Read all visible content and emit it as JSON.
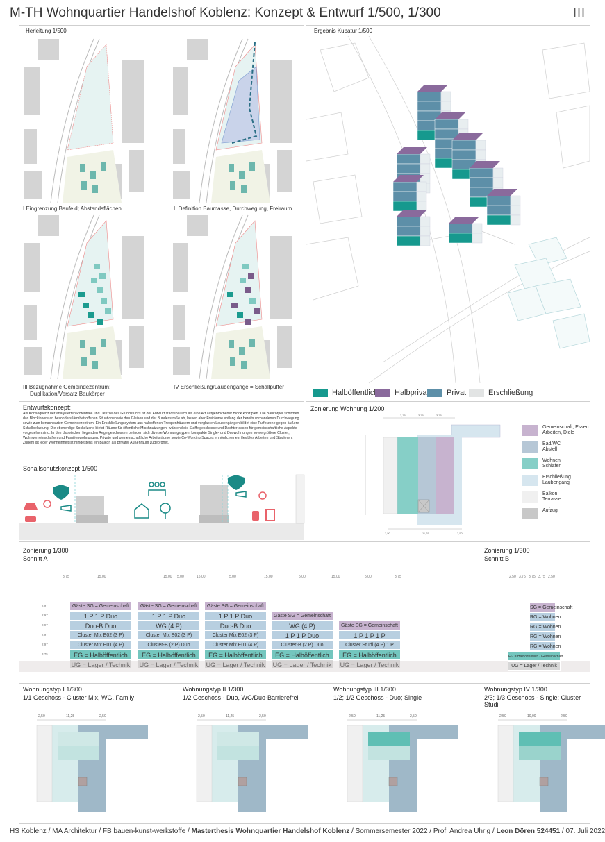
{
  "header": {
    "title": "M-TH Wohnquartier Handelshof Koblenz: Konzept & Entwurf  1/500, 1/300",
    "sheet": "III"
  },
  "herleitung": {
    "title": "Herleitung  1/500",
    "steps": [
      "I  Eingrenzung Baufeld; Abstandsflächen",
      "II  Definition Baumasse, Durchwegung, Freiraum",
      "III  Bezugnahme Gemeindezentrum;",
      "Duplikation/Versatz Baukörper",
      "IV  Erschließung/Laubengänge = Schallpuffer"
    ]
  },
  "kubatur": {
    "title": "Ergebnis Kubatur  1/500",
    "legend": [
      {
        "label": "Halböffentlich",
        "color": "#16998e"
      },
      {
        "label": "Halbprivat",
        "color": "#8a6a9c"
      },
      {
        "label": "Privat",
        "color": "#5d8fa8"
      },
      {
        "label": "Erschließung",
        "color": "#e2e4e4"
      }
    ]
  },
  "entwurf": {
    "title": "Entwurfskonzept:",
    "text": "Als Konsequenz der analysierten Potentiale und Defizite des Grundstücks ist der Entwurf städtebaulich als eine Art aufgebrochener Block konzipiert. Die Baukörper schirmen das Blockinnere an besonders lärmbetroffenen Situationen wie den Gleisen und der Bundesstraße ab, lassen aber Freiräume entlang der bereits vorhandenen Durchwegung sowie zum benachbarten Gemeindezentrum. Ein Erschließungssystem aus halboffenen Treppenhäusern und verglasten Laubengängen bildet eine Pufferzone gegen äußere Schallbelastung. Die ebenerdige Sockelzone bietet Räume für öffentliche Mischnutzungen, während die Staffelgeschosse und Dachterrassen für gemeinschaftliche Aspekte vorgesehen sind. In den dazwischen liegenden Regelgeschossen befinden sich diverse Wohnungstypen: kompakte Single- und Duowohnungen sowie größere Cluster, Wohngemeinschaften und Familienwohnungen. Private und gemeinschaftliche Arbeitsräume sowie Co-Working-Spaces ermöglichen ein flexibles Arbeiten und Studieren.  Zudem ist jeder Wohneinheit ist mindestens ein Balkon als privater Außenraum zugeordnet."
  },
  "schallschutz": {
    "title": "Schallschutzkonzept  1/500"
  },
  "zonierung_wohnung": {
    "title": "Zonierung Wohnung  1/200",
    "legend": [
      {
        "label": "Gemeinschaft, Essen\nArbeiten, Diele",
        "color": "#c7b3cf"
      },
      {
        "label": "Bad/WC\nAbstell",
        "color": "#b6c7d6"
      },
      {
        "label": "Wohnen\nSchlafen",
        "color": "#86cfc7"
      },
      {
        "label": "Erschließung\nLaubengang",
        "color": "#d6e6ef"
      },
      {
        "label": "Balkon\nTerrasse",
        "color": "#f0f0f0"
      },
      {
        "label": "Aufzug",
        "color": "#c8c8c8"
      }
    ],
    "dims_top": [
      "3,75",
      "3,75",
      "3,75",
      "3,75"
    ],
    "dims_bottom": [
      "2,50",
      "11,25",
      "2,50"
    ]
  },
  "schnitt": {
    "title_a": "Zonierung  1/300",
    "sub_a": "Schnitt A",
    "title_b": "Zonierung  1/300",
    "sub_b": "Schnitt B",
    "dims": [
      "3,75",
      "15,00",
      "5,00",
      "15,00",
      "5,00",
      "15,00",
      "5,00",
      "15,00",
      "5,00",
      "15,00",
      "3,75"
    ],
    "dims_b": [
      "2,50",
      "3,75",
      "3,75",
      "3,75",
      "2,50"
    ],
    "heights": [
      "2,97",
      "2,97",
      "2,97",
      "2,97",
      "2,97",
      "3,75"
    ],
    "buildings": [
      {
        "rows": [
          "Gäste   SG = Gemeinschaft",
          "1 P   1 P   Duo",
          "Duo-B   Duo",
          "Cluster Mix E02 (3 P)",
          "Cluster Mix E01 (4 P)",
          "EG = Halböffentlich",
          "UG = Lager / Technik"
        ]
      },
      {
        "rows": [
          "Gäste   SG = Gemeinschaft",
          "1 P   1 P   Duo",
          "WG (4 P)",
          "Cluster Mix E02 (3 P)",
          "Cluster-B (2 P)   Duo",
          "EG = Halböffentlich",
          "UG = Lager / Technik"
        ]
      },
      {
        "rows": [
          "Gäste   SG = Gemeinschaft",
          "1 P   1 P   Duo",
          "Duo-B   Duo",
          "Cluster Mix E02 (3 P)",
          "Cluster Mix E01 (4 P)",
          "EG = Halböffentlich",
          "UG = Lager / Technik"
        ]
      },
      {
        "rows": [
          "Gäste   SG = Gemeinschaft",
          "WG (4 P)",
          "1 P   1 P   Duo",
          "Cluster-B (2 P)   Duo",
          "EG = Halböffentlich",
          "UG = Lager / Technik"
        ]
      },
      {
        "rows": [
          "Gäste   SG = Gemeinschaft",
          "1 P   1 P   1 P",
          "Cluster Studi (4 P)   1 P",
          "EG = Halböffentlich",
          "UG = Lager / Technik"
        ]
      }
    ],
    "building_b": [
      "SG = Gemeinschaft",
      "RG = Wohnen",
      "RG = Wohnen",
      "RG = Wohnen",
      "RG = Wohnen",
      "EG = Halböffentlich / Gemeinschaft",
      "UG = Lager / Technik"
    ]
  },
  "wohnungstypen": [
    {
      "title": "Wohnungstyp I  1/300",
      "sub": "1/1 Geschoss - Cluster Mix, WG, Family",
      "dims": [
        "2,50",
        "11,25",
        "2,50"
      ]
    },
    {
      "title": "Wohnungstyp II  1/300",
      "sub": "1/2 Geschoss - Duo, WG/Duo-Barrierefrei",
      "dims": [
        "2,50",
        "11,25",
        "2,50"
      ]
    },
    {
      "title": "Wohnungstyp III  1/300",
      "sub": "1/2; 1/2 Geschoss - Duo; Single",
      "dims": [
        "2,50",
        "11,25",
        "2,50"
      ]
    },
    {
      "title": "Wohnungstyp IV  1/300",
      "sub": "2/3; 1/3 Geschoss - Single; Cluster Studi",
      "dims": [
        "2,50",
        "10,00",
        "2,50"
      ]
    }
  ],
  "footer": {
    "left": "HS Koblenz / MA Architektur / FB bauen-kunst-werkstoffe / ",
    "bold": "Masterthesis Wohnquartier Handelshof Koblenz",
    "middle": " / Sommersemester 2022 / Prof. Andrea Uhrig / ",
    "author": "Leon Dören 524451",
    "date": " / 07. Juli 2022"
  }
}
